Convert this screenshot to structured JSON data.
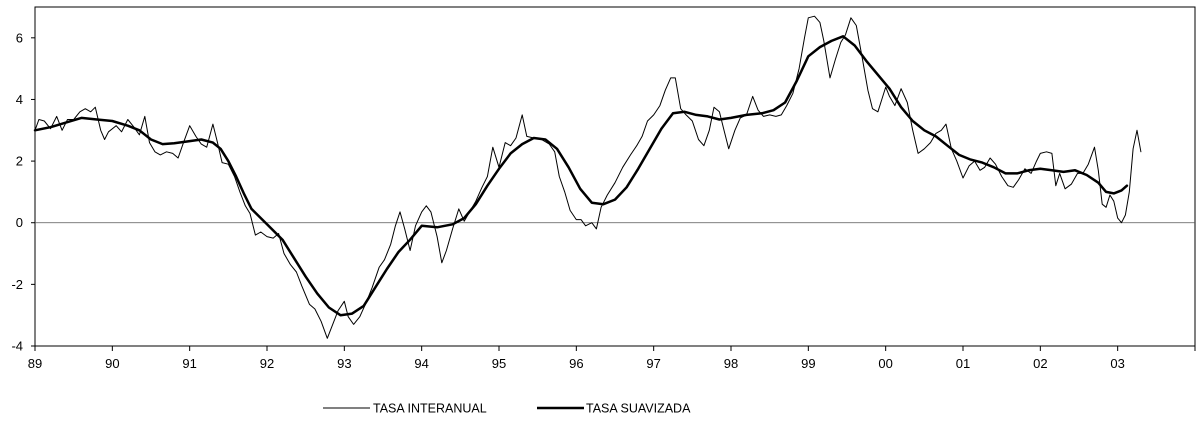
{
  "chart_data": {
    "type": "line",
    "title": "",
    "xlabel": "",
    "ylabel": "",
    "x_range": [
      1989,
      2004
    ],
    "ylim": [
      -4,
      7
    ],
    "y_ticks": [
      -4,
      -2,
      0,
      2,
      4,
      6
    ],
    "x_tick_values": [
      1989,
      1990,
      1991,
      1992,
      1993,
      1994,
      1995,
      1996,
      1997,
      1998,
      1999,
      2000,
      2001,
      2002,
      2003
    ],
    "x_tick_labels": [
      "89",
      "90",
      "91",
      "92",
      "93",
      "94",
      "95",
      "96",
      "97",
      "98",
      "99",
      "00",
      "01",
      "02",
      "03"
    ],
    "zero_line": true,
    "grid": false,
    "legend_position": "bottom-center",
    "series": [
      {
        "name": "TASA INTERANUAL",
        "style": "thin",
        "color": "#000000",
        "points": [
          [
            1989.0,
            3.0
          ],
          [
            1989.05,
            3.35
          ],
          [
            1989.12,
            3.3
          ],
          [
            1989.2,
            3.05
          ],
          [
            1989.28,
            3.45
          ],
          [
            1989.35,
            3.0
          ],
          [
            1989.42,
            3.35
          ],
          [
            1989.5,
            3.35
          ],
          [
            1989.58,
            3.6
          ],
          [
            1989.65,
            3.7
          ],
          [
            1989.72,
            3.6
          ],
          [
            1989.78,
            3.75
          ],
          [
            1989.85,
            3.0
          ],
          [
            1989.9,
            2.7
          ],
          [
            1989.95,
            2.95
          ],
          [
            1990.05,
            3.15
          ],
          [
            1990.12,
            2.95
          ],
          [
            1990.2,
            3.35
          ],
          [
            1990.28,
            3.1
          ],
          [
            1990.35,
            2.85
          ],
          [
            1990.42,
            3.45
          ],
          [
            1990.48,
            2.6
          ],
          [
            1990.55,
            2.3
          ],
          [
            1990.62,
            2.2
          ],
          [
            1990.7,
            2.3
          ],
          [
            1990.78,
            2.25
          ],
          [
            1990.85,
            2.1
          ],
          [
            1990.92,
            2.6
          ],
          [
            1991.0,
            3.15
          ],
          [
            1991.08,
            2.8
          ],
          [
            1991.15,
            2.55
          ],
          [
            1991.22,
            2.45
          ],
          [
            1991.3,
            3.2
          ],
          [
            1991.36,
            2.6
          ],
          [
            1991.42,
            1.95
          ],
          [
            1991.5,
            1.9
          ],
          [
            1991.58,
            1.5
          ],
          [
            1991.65,
            1.0
          ],
          [
            1991.72,
            0.55
          ],
          [
            1991.78,
            0.3
          ],
          [
            1991.85,
            -0.4
          ],
          [
            1991.92,
            -0.3
          ],
          [
            1992.0,
            -0.45
          ],
          [
            1992.08,
            -0.5
          ],
          [
            1992.15,
            -0.35
          ],
          [
            1992.22,
            -1.0
          ],
          [
            1992.3,
            -1.35
          ],
          [
            1992.38,
            -1.6
          ],
          [
            1992.45,
            -2.05
          ],
          [
            1992.55,
            -2.65
          ],
          [
            1992.62,
            -2.8
          ],
          [
            1992.7,
            -3.2
          ],
          [
            1992.78,
            -3.75
          ],
          [
            1992.85,
            -3.3
          ],
          [
            1992.92,
            -2.85
          ],
          [
            1993.0,
            -2.55
          ],
          [
            1993.05,
            -3.05
          ],
          [
            1993.12,
            -3.3
          ],
          [
            1993.2,
            -3.05
          ],
          [
            1993.28,
            -2.6
          ],
          [
            1993.36,
            -2.1
          ],
          [
            1993.45,
            -1.45
          ],
          [
            1993.52,
            -1.2
          ],
          [
            1993.6,
            -0.7
          ],
          [
            1993.66,
            -0.1
          ],
          [
            1993.72,
            0.35
          ],
          [
            1993.78,
            -0.2
          ],
          [
            1993.85,
            -0.9
          ],
          [
            1993.92,
            -0.1
          ],
          [
            1994.0,
            0.35
          ],
          [
            1994.06,
            0.55
          ],
          [
            1994.12,
            0.35
          ],
          [
            1994.2,
            -0.45
          ],
          [
            1994.26,
            -1.3
          ],
          [
            1994.32,
            -0.9
          ],
          [
            1994.4,
            -0.2
          ],
          [
            1994.48,
            0.45
          ],
          [
            1994.55,
            0.05
          ],
          [
            1994.62,
            0.35
          ],
          [
            1994.7,
            0.7
          ],
          [
            1994.78,
            1.15
          ],
          [
            1994.85,
            1.5
          ],
          [
            1994.92,
            2.45
          ],
          [
            1995.0,
            1.8
          ],
          [
            1995.08,
            2.6
          ],
          [
            1995.15,
            2.5
          ],
          [
            1995.22,
            2.75
          ],
          [
            1995.3,
            3.5
          ],
          [
            1995.36,
            2.8
          ],
          [
            1995.45,
            2.75
          ],
          [
            1995.55,
            2.7
          ],
          [
            1995.65,
            2.55
          ],
          [
            1995.72,
            2.3
          ],
          [
            1995.78,
            1.5
          ],
          [
            1995.85,
            1.0
          ],
          [
            1995.92,
            0.4
          ],
          [
            1996.0,
            0.1
          ],
          [
            1996.06,
            0.1
          ],
          [
            1996.12,
            -0.1
          ],
          [
            1996.2,
            0.0
          ],
          [
            1996.26,
            -0.2
          ],
          [
            1996.32,
            0.5
          ],
          [
            1996.4,
            0.9
          ],
          [
            1996.5,
            1.3
          ],
          [
            1996.6,
            1.8
          ],
          [
            1996.7,
            2.2
          ],
          [
            1996.78,
            2.5
          ],
          [
            1996.85,
            2.8
          ],
          [
            1996.92,
            3.3
          ],
          [
            1997.0,
            3.5
          ],
          [
            1997.08,
            3.8
          ],
          [
            1997.15,
            4.3
          ],
          [
            1997.22,
            4.7
          ],
          [
            1997.28,
            4.7
          ],
          [
            1997.35,
            3.7
          ],
          [
            1997.42,
            3.5
          ],
          [
            1997.5,
            3.3
          ],
          [
            1997.58,
            2.7
          ],
          [
            1997.65,
            2.5
          ],
          [
            1997.72,
            3.0
          ],
          [
            1997.78,
            3.75
          ],
          [
            1997.85,
            3.6
          ],
          [
            1997.92,
            2.9
          ],
          [
            1997.97,
            2.4
          ],
          [
            1998.05,
            3.0
          ],
          [
            1998.12,
            3.4
          ],
          [
            1998.2,
            3.5
          ],
          [
            1998.28,
            4.1
          ],
          [
            1998.35,
            3.65
          ],
          [
            1998.42,
            3.45
          ],
          [
            1998.5,
            3.5
          ],
          [
            1998.58,
            3.45
          ],
          [
            1998.65,
            3.5
          ],
          [
            1998.72,
            3.8
          ],
          [
            1998.8,
            4.2
          ],
          [
            1998.88,
            5.0
          ],
          [
            1998.95,
            6.0
          ],
          [
            1999.0,
            6.65
          ],
          [
            1999.08,
            6.7
          ],
          [
            1999.15,
            6.5
          ],
          [
            1999.2,
            5.9
          ],
          [
            1999.28,
            4.7
          ],
          [
            1999.35,
            5.3
          ],
          [
            1999.42,
            5.85
          ],
          [
            1999.48,
            6.1
          ],
          [
            1999.55,
            6.65
          ],
          [
            1999.62,
            6.4
          ],
          [
            1999.7,
            5.3
          ],
          [
            1999.77,
            4.3
          ],
          [
            1999.83,
            3.7
          ],
          [
            1999.9,
            3.6
          ],
          [
            1999.95,
            4.0
          ],
          [
            2000.0,
            4.4
          ],
          [
            2000.05,
            4.1
          ],
          [
            2000.12,
            3.8
          ],
          [
            2000.2,
            4.35
          ],
          [
            2000.28,
            3.9
          ],
          [
            2000.35,
            3.0
          ],
          [
            2000.42,
            2.25
          ],
          [
            2000.5,
            2.4
          ],
          [
            2000.58,
            2.6
          ],
          [
            2000.65,
            2.9
          ],
          [
            2000.72,
            3.0
          ],
          [
            2000.78,
            3.2
          ],
          [
            2000.85,
            2.4
          ],
          [
            2000.92,
            2.0
          ],
          [
            2001.0,
            1.45
          ],
          [
            2001.08,
            1.85
          ],
          [
            2001.15,
            2.0
          ],
          [
            2001.22,
            1.7
          ],
          [
            2001.28,
            1.8
          ],
          [
            2001.35,
            2.1
          ],
          [
            2001.42,
            1.9
          ],
          [
            2001.5,
            1.5
          ],
          [
            2001.58,
            1.2
          ],
          [
            2001.65,
            1.15
          ],
          [
            2001.72,
            1.4
          ],
          [
            2001.8,
            1.75
          ],
          [
            2001.88,
            1.6
          ],
          [
            2001.95,
            2.0
          ],
          [
            2002.0,
            2.25
          ],
          [
            2002.08,
            2.3
          ],
          [
            2002.15,
            2.25
          ],
          [
            2002.2,
            1.2
          ],
          [
            2002.25,
            1.6
          ],
          [
            2002.32,
            1.1
          ],
          [
            2002.4,
            1.25
          ],
          [
            2002.48,
            1.6
          ],
          [
            2002.55,
            1.6
          ],
          [
            2002.62,
            1.9
          ],
          [
            2002.7,
            2.45
          ],
          [
            2002.75,
            1.7
          ],
          [
            2002.8,
            0.6
          ],
          [
            2002.85,
            0.5
          ],
          [
            2002.9,
            0.9
          ],
          [
            2002.95,
            0.7
          ],
          [
            2003.0,
            0.15
          ],
          [
            2003.05,
            0.0
          ],
          [
            2003.1,
            0.25
          ],
          [
            2003.15,
            1.0
          ],
          [
            2003.2,
            2.4
          ],
          [
            2003.25,
            3.0
          ],
          [
            2003.3,
            2.3
          ]
        ]
      },
      {
        "name": "TASA SUAVIZADA",
        "style": "thick",
        "color": "#000000",
        "points": [
          [
            1989.0,
            3.0
          ],
          [
            1989.2,
            3.1
          ],
          [
            1989.4,
            3.25
          ],
          [
            1989.6,
            3.4
          ],
          [
            1989.8,
            3.35
          ],
          [
            1990.0,
            3.3
          ],
          [
            1990.2,
            3.15
          ],
          [
            1990.35,
            3.0
          ],
          [
            1990.5,
            2.7
          ],
          [
            1990.65,
            2.55
          ],
          [
            1990.8,
            2.58
          ],
          [
            1991.0,
            2.65
          ],
          [
            1991.15,
            2.7
          ],
          [
            1991.3,
            2.6
          ],
          [
            1991.4,
            2.4
          ],
          [
            1991.5,
            2.0
          ],
          [
            1991.6,
            1.5
          ],
          [
            1991.7,
            0.95
          ],
          [
            1991.8,
            0.45
          ],
          [
            1992.0,
            -0.05
          ],
          [
            1992.2,
            -0.55
          ],
          [
            1992.35,
            -1.15
          ],
          [
            1992.5,
            -1.75
          ],
          [
            1992.65,
            -2.3
          ],
          [
            1992.8,
            -2.75
          ],
          [
            1992.95,
            -3.0
          ],
          [
            1993.1,
            -2.95
          ],
          [
            1993.25,
            -2.7
          ],
          [
            1993.4,
            -2.1
          ],
          [
            1993.55,
            -1.5
          ],
          [
            1993.7,
            -0.95
          ],
          [
            1993.85,
            -0.55
          ],
          [
            1994.0,
            -0.1
          ],
          [
            1994.2,
            -0.15
          ],
          [
            1994.4,
            -0.05
          ],
          [
            1994.55,
            0.15
          ],
          [
            1994.7,
            0.6
          ],
          [
            1994.85,
            1.2
          ],
          [
            1995.0,
            1.75
          ],
          [
            1995.15,
            2.25
          ],
          [
            1995.3,
            2.55
          ],
          [
            1995.45,
            2.75
          ],
          [
            1995.6,
            2.7
          ],
          [
            1995.75,
            2.4
          ],
          [
            1995.9,
            1.8
          ],
          [
            1996.05,
            1.1
          ],
          [
            1996.2,
            0.65
          ],
          [
            1996.35,
            0.6
          ],
          [
            1996.5,
            0.75
          ],
          [
            1996.65,
            1.15
          ],
          [
            1996.8,
            1.75
          ],
          [
            1996.95,
            2.4
          ],
          [
            1997.1,
            3.05
          ],
          [
            1997.25,
            3.55
          ],
          [
            1997.4,
            3.6
          ],
          [
            1997.55,
            3.5
          ],
          [
            1997.7,
            3.45
          ],
          [
            1997.85,
            3.35
          ],
          [
            1998.0,
            3.4
          ],
          [
            1998.2,
            3.5
          ],
          [
            1998.4,
            3.55
          ],
          [
            1998.55,
            3.65
          ],
          [
            1998.7,
            3.9
          ],
          [
            1998.85,
            4.6
          ],
          [
            1999.0,
            5.4
          ],
          [
            1999.15,
            5.7
          ],
          [
            1999.3,
            5.9
          ],
          [
            1999.45,
            6.05
          ],
          [
            1999.6,
            5.75
          ],
          [
            1999.75,
            5.25
          ],
          [
            1999.9,
            4.8
          ],
          [
            2000.05,
            4.35
          ],
          [
            2000.2,
            3.75
          ],
          [
            2000.35,
            3.3
          ],
          [
            2000.5,
            3.0
          ],
          [
            2000.65,
            2.8
          ],
          [
            2000.8,
            2.5
          ],
          [
            2000.95,
            2.2
          ],
          [
            2001.1,
            2.05
          ],
          [
            2001.25,
            1.95
          ],
          [
            2001.4,
            1.8
          ],
          [
            2001.55,
            1.6
          ],
          [
            2001.7,
            1.6
          ],
          [
            2001.85,
            1.7
          ],
          [
            2002.0,
            1.75
          ],
          [
            2002.15,
            1.7
          ],
          [
            2002.3,
            1.65
          ],
          [
            2002.45,
            1.7
          ],
          [
            2002.6,
            1.55
          ],
          [
            2002.75,
            1.3
          ],
          [
            2002.85,
            1.0
          ],
          [
            2002.95,
            0.95
          ],
          [
            2003.05,
            1.05
          ],
          [
            2003.12,
            1.2
          ]
        ]
      }
    ]
  }
}
